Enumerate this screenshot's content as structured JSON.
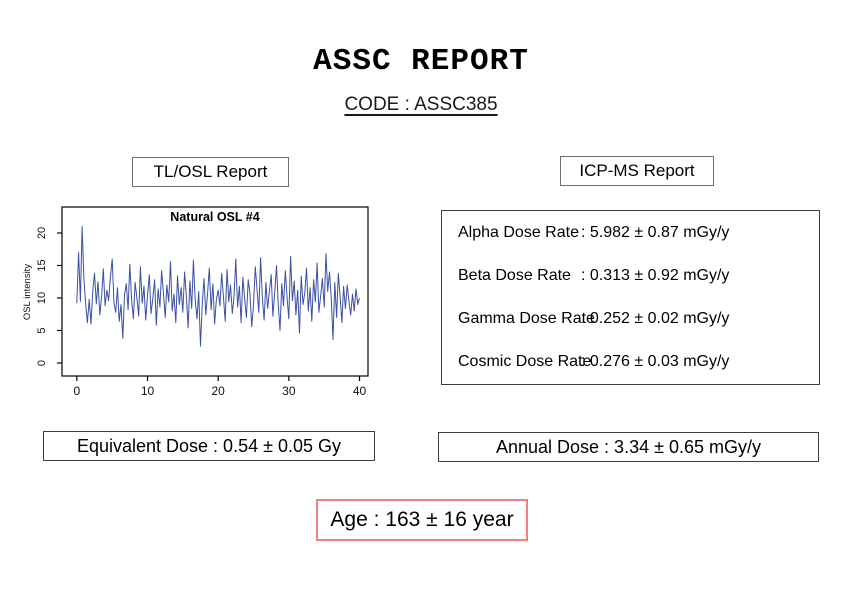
{
  "report": {
    "title": "ASSC REPORT",
    "code_line": "CODE : ASSC385"
  },
  "tl_osl": {
    "header": "TL/OSL Report",
    "equivalent_dose": "Equivalent Dose : 0.54 ± 0.05 Gy"
  },
  "icp_ms": {
    "header": "ICP-MS Report",
    "rows": [
      {
        "label": "Alpha Dose Rate",
        "value": ": 5.982 ± 0.87 mGy/y"
      },
      {
        "label": "Beta Dose Rate",
        "value": ": 0.313 ± 0.92 mGy/y"
      },
      {
        "label": "Gamma Dose Rate",
        "value": ": 0.252 ± 0.02 mGy/y"
      },
      {
        "label": "Cosmic Dose Rate",
        "value": ": 0.276 ± 0.03 mGy/y"
      }
    ],
    "annual_dose": "Annual Dose : 3.34 ± 0.65 mGy/y"
  },
  "age": "Age : 163 ± 16 year",
  "colors": {
    "line": "#3c50a4",
    "age_box_border": "#f08080",
    "box_border_dark": "#3f3f3f",
    "box_border_gray": "#6f6f6f"
  },
  "chart_data": {
    "type": "line",
    "title": "Natural OSL #4",
    "xlabel": "",
    "ylabel": "OSL intensity",
    "xlim": [
      -2.1,
      41.2
    ],
    "ylim": [
      -2,
      24
    ],
    "xticks": [
      0,
      10,
      20,
      30,
      40
    ],
    "yticks": [
      0,
      5,
      10,
      15,
      20
    ],
    "line_color": "#3c50a4",
    "x_start": 0,
    "x_step": 0.25,
    "values": [
      9.2,
      17.0,
      9.5,
      21.0,
      13.0,
      9.0,
      6.2,
      9.8,
      6.0,
      11.0,
      13.8,
      9.1,
      12.5,
      7.4,
      10.2,
      14.5,
      8.8,
      11.2,
      9.6,
      13.2,
      16.0,
      9.4,
      7.8,
      11.6,
      6.4,
      9.0,
      3.8,
      10.5,
      12.2,
      8.2,
      15.2,
      9.8,
      6.8,
      12.4,
      10.0,
      7.2,
      14.8,
      9.2,
      11.8,
      6.6,
      10.4,
      13.6,
      7.6,
      9.9,
      12.8,
      5.8,
      11.4,
      8.6,
      14.2,
      10.8,
      7.0,
      12.0,
      9.4,
      15.6,
      8.0,
      10.6,
      6.2,
      13.4,
      9.0,
      11.6,
      7.8,
      14.0,
      10.2,
      5.4,
      12.6,
      8.4,
      15.8,
      9.6,
      6.8,
      11.0,
      2.6,
      9.2,
      13.0,
      7.4,
      10.8,
      14.6,
      8.2,
      12.2,
      6.0,
      9.8,
      11.2,
      8.8,
      13.8,
      10.0,
      6.4,
      14.4,
      9.4,
      12.0,
      7.6,
      10.4,
      16.0,
      8.6,
      11.8,
      6.2,
      13.2,
      9.8,
      7.0,
      12.8,
      10.6,
      5.6,
      9.0,
      14.8,
      11.4,
      7.8,
      16.2,
      10.2,
      6.6,
      12.4,
      8.4,
      11.0,
      13.6,
      7.2,
      10.8,
      15.0,
      9.2,
      5.0,
      12.2,
      8.8,
      14.2,
      10.0,
      6.8,
      16.4,
      9.6,
      12.6,
      7.4,
      11.2,
      4.6,
      13.4,
      9.0,
      10.8,
      14.6,
      8.0,
      11.6,
      6.4,
      12.8,
      9.4,
      15.4,
      7.8,
      10.4,
      13.0,
      8.6,
      16.8,
      11.0,
      14.0,
      9.8,
      3.6,
      12.4,
      7.0,
      13.8,
      10.2,
      6.2,
      11.8,
      8.4,
      12.0,
      9.6,
      7.4,
      10.6,
      8.0,
      11.4,
      9.0,
      10.0
    ]
  }
}
